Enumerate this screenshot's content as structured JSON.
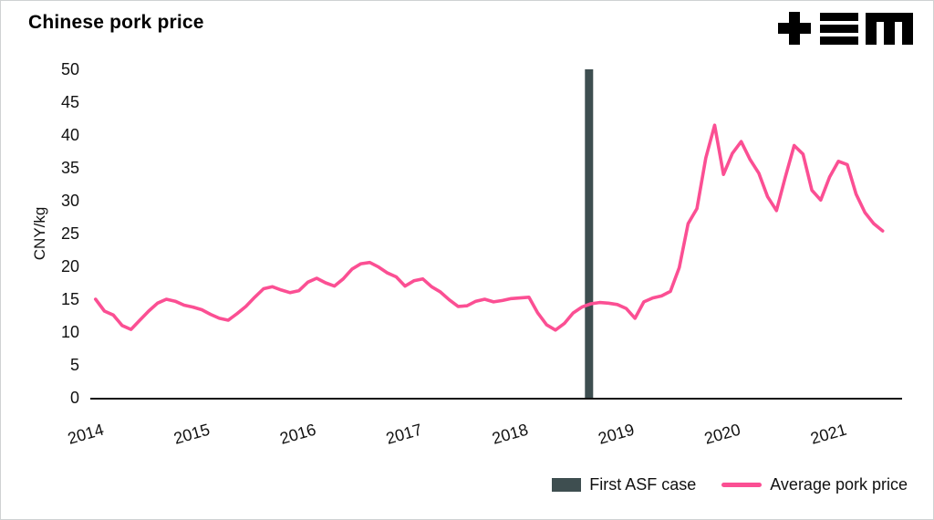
{
  "header": {
    "title": "Chinese pork price",
    "logo_name": "tem-logo"
  },
  "chart_data": {
    "type": "line",
    "title": "Chinese pork price",
    "xlabel": "",
    "ylabel": "CNY/kg",
    "ylim": [
      0,
      50
    ],
    "yticks": [
      0,
      5,
      10,
      15,
      20,
      25,
      30,
      35,
      40,
      45,
      50
    ],
    "xlim": [
      2013.95,
      2021.6
    ],
    "xticks": [
      2014,
      2015,
      2016,
      2017,
      2018,
      2019,
      2020,
      2021
    ],
    "grid": false,
    "colors": {
      "line": "#fb4f93",
      "annotation_bar": "#3e4e50",
      "axis": "#111111",
      "text": "#111111"
    },
    "annotations": [
      {
        "type": "vertical-bar",
        "x": 2018.65,
        "label": "First ASF case",
        "color": "#3e4e50"
      }
    ],
    "legend": {
      "position": "bottom-right",
      "entries": [
        {
          "label": "First ASF case",
          "swatch": "bar",
          "color": "#3e4e50"
        },
        {
          "label": "Average pork price",
          "swatch": "line",
          "color": "#fb4f93"
        }
      ]
    },
    "series": [
      {
        "name": "Average pork price",
        "color": "#fb4f93",
        "start_year": 2014,
        "interval_months": 1,
        "values": [
          15.0,
          13.2,
          12.6,
          11.0,
          10.4,
          11.8,
          13.2,
          14.4,
          15.0,
          14.7,
          14.1,
          13.8,
          13.4,
          12.7,
          12.1,
          11.8,
          12.8,
          13.9,
          15.3,
          16.6,
          16.9,
          16.4,
          16.0,
          16.3,
          17.6,
          18.2,
          17.5,
          17.0,
          18.1,
          19.6,
          20.4,
          20.6,
          19.9,
          19.0,
          18.4,
          17.0,
          17.8,
          18.1,
          16.9,
          16.1,
          14.9,
          13.9,
          14.0,
          14.7,
          15.0,
          14.6,
          14.8,
          15.1,
          15.2,
          15.3,
          12.9,
          11.1,
          10.3,
          11.3,
          12.9,
          13.8,
          14.3,
          14.5,
          14.4,
          14.2,
          13.6,
          12.1,
          14.6,
          15.2,
          15.5,
          16.2,
          19.8,
          26.5,
          28.8,
          36.5,
          41.5,
          34.0,
          37.2,
          39.0,
          36.3,
          34.2,
          30.6,
          28.5,
          33.6,
          38.4,
          37.1,
          31.6,
          30.1,
          33.6,
          36.0,
          35.5,
          31.0,
          28.2,
          26.5,
          25.4
        ]
      }
    ]
  }
}
